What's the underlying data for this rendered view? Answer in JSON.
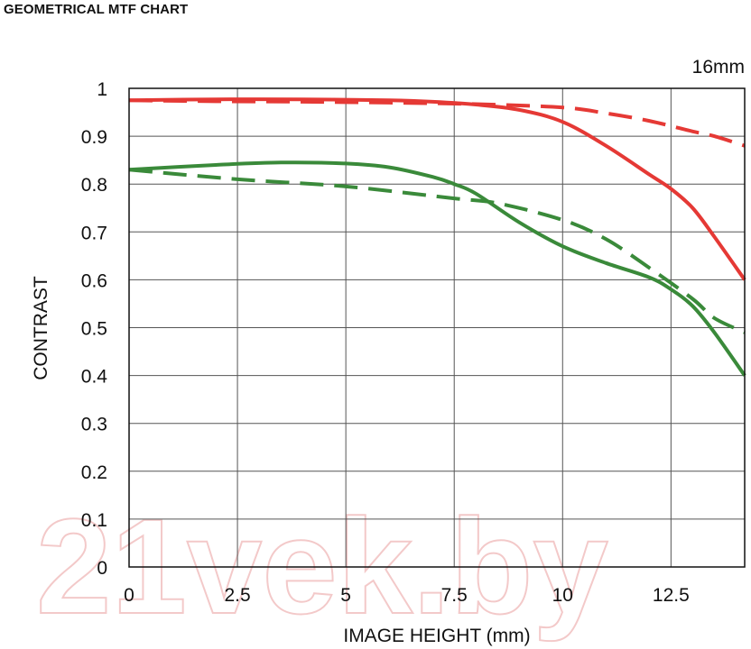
{
  "header": {
    "title": "GEOMETRICAL MTF CHART"
  },
  "watermark": "21vek.by",
  "chart_data": {
    "type": "line",
    "title": "GEOMETRICAL MTF CHART",
    "annotation": "16mm",
    "xlabel": "IMAGE HEIGHT (mm)",
    "ylabel": "CONTRAST",
    "xlim": [
      0,
      14.2
    ],
    "ylim": [
      0,
      1
    ],
    "xticks": [
      "0",
      "2.5",
      "5",
      "7.5",
      "10",
      "12.5"
    ],
    "xtick_values": [
      0,
      2.5,
      5,
      7.5,
      10,
      12.5
    ],
    "yticks": [
      "0",
      "0.1",
      "0.2",
      "0.3",
      "0.4",
      "0.5",
      "0.6",
      "0.7",
      "0.8",
      "0.9",
      "1"
    ],
    "ytick_values": [
      0,
      0.1,
      0.2,
      0.3,
      0.4,
      0.5,
      0.6,
      0.7,
      0.8,
      0.9,
      1
    ],
    "grid": true,
    "series": [
      {
        "color": "#e53935",
        "style": "solid",
        "x": [
          0,
          2,
          4,
          6,
          7,
          8,
          9,
          10,
          11,
          12,
          12.5,
          13,
          13.5,
          14.2
        ],
        "y": [
          0.975,
          0.977,
          0.977,
          0.975,
          0.972,
          0.966,
          0.955,
          0.93,
          0.88,
          0.82,
          0.79,
          0.75,
          0.69,
          0.6
        ]
      },
      {
        "color": "#e53935",
        "style": "dashed",
        "x": [
          0,
          2,
          4,
          6,
          8,
          10,
          11,
          12,
          13,
          13.5,
          14.2
        ],
        "y": [
          0.975,
          0.973,
          0.972,
          0.97,
          0.967,
          0.96,
          0.948,
          0.932,
          0.91,
          0.9,
          0.88
        ]
      },
      {
        "color": "#3a8a3a",
        "style": "solid",
        "x": [
          0,
          2,
          3.5,
          5,
          6,
          7,
          7.5,
          8,
          9,
          10,
          11,
          12,
          12.5,
          13,
          13.5,
          14.2
        ],
        "y": [
          0.83,
          0.84,
          0.845,
          0.843,
          0.835,
          0.815,
          0.8,
          0.78,
          0.72,
          0.67,
          0.635,
          0.605,
          0.58,
          0.545,
          0.49,
          0.4
        ]
      },
      {
        "color": "#3a8a3a",
        "style": "dashed",
        "x": [
          0,
          2.5,
          5,
          7.5,
          8.5,
          10,
          11,
          12,
          13,
          13.5,
          14.2
        ],
        "y": [
          0.83,
          0.81,
          0.795,
          0.77,
          0.76,
          0.725,
          0.685,
          0.625,
          0.56,
          0.52,
          0.49
        ]
      }
    ]
  }
}
